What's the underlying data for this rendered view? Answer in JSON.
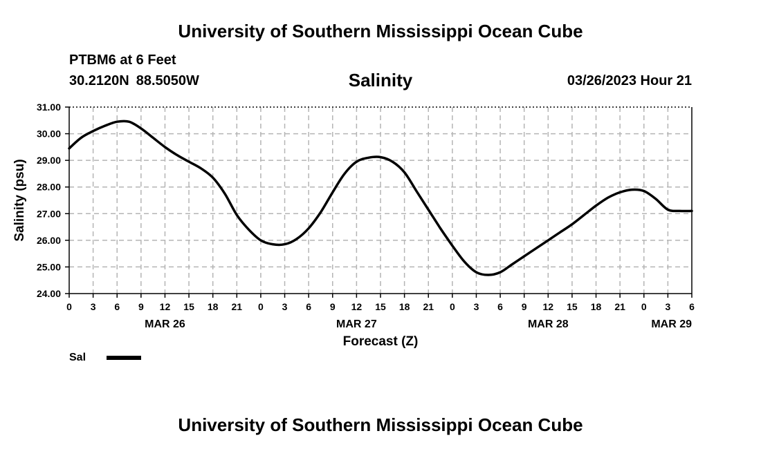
{
  "page": {
    "top_title": "University of Southern Mississippi Ocean Cube",
    "bottom_title": "University of Southern Mississippi Ocean Cube",
    "station": "PTBM6 at 6 Feet",
    "lat": "30.2120N",
    "lon": "88.5050W",
    "datetime": "03/26/2023 Hour 21"
  },
  "legend": {
    "label": "Sal",
    "color": "#000000"
  },
  "chart_data": {
    "type": "line",
    "title": "Salinity",
    "xlabel": "Forecast (Z)",
    "ylabel": "Salinity (psu)",
    "xlim": [
      0,
      78
    ],
    "ylim": [
      24,
      31
    ],
    "y_ticks": [
      "24.00",
      "25.00",
      "26.00",
      "27.00",
      "28.00",
      "29.00",
      "30.00",
      "31.00"
    ],
    "x_ticks": [
      "0",
      "3",
      "6",
      "9",
      "12",
      "15",
      "18",
      "21",
      "0",
      "3",
      "6",
      "9",
      "12",
      "15",
      "18",
      "21",
      "0",
      "3",
      "6",
      "9",
      "12",
      "15",
      "18",
      "21",
      "0",
      "3",
      "6"
    ],
    "day_labels": [
      {
        "label": "MAR 26",
        "hour": 12
      },
      {
        "label": "MAR 27",
        "hour": 36
      },
      {
        "label": "MAR 28",
        "hour": 60
      },
      {
        "label": "MAR 29",
        "hour": 78
      }
    ],
    "grid": true,
    "series": [
      {
        "name": "Sal",
        "x": [
          0,
          1.5,
          3,
          4.5,
          6,
          7.5,
          9,
          10.5,
          12,
          13.5,
          15,
          16.5,
          18,
          19.5,
          21,
          22.5,
          24,
          25.5,
          27,
          28.5,
          30,
          31.5,
          33,
          34.5,
          36,
          37.5,
          39,
          40.5,
          42,
          43.5,
          45,
          46.5,
          48,
          49.5,
          51,
          52.5,
          54,
          55.5,
          57,
          58.5,
          60,
          61.5,
          63,
          64.5,
          66,
          67.5,
          69,
          70.5,
          72,
          73.5,
          75,
          76.5,
          78
        ],
        "y": [
          29.45,
          29.85,
          30.1,
          30.3,
          30.45,
          30.45,
          30.2,
          29.85,
          29.5,
          29.2,
          28.95,
          28.7,
          28.35,
          27.75,
          26.95,
          26.4,
          26.0,
          25.85,
          25.85,
          26.05,
          26.45,
          27.05,
          27.8,
          28.5,
          28.95,
          29.1,
          29.12,
          28.95,
          28.55,
          27.85,
          27.15,
          26.45,
          25.8,
          25.2,
          24.8,
          24.7,
          24.8,
          25.1,
          25.4,
          25.7,
          26.0,
          26.3,
          26.6,
          26.95,
          27.3,
          27.6,
          27.8,
          27.9,
          27.85,
          27.55,
          27.15,
          27.1,
          27.1
        ]
      }
    ]
  }
}
